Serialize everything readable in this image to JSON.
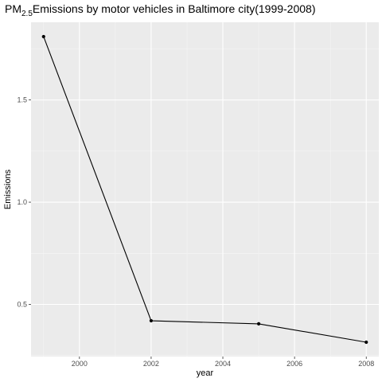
{
  "chart_data": {
    "type": "line",
    "title": {
      "prefix": "PM",
      "subscript": "2.5",
      "rest": "Emissions by motor vehicles in Baltimore city(1999-2008)"
    },
    "xlabel": "year",
    "ylabel": "Emissions",
    "x": [
      1999,
      2002,
      2005,
      2008
    ],
    "y": [
      1.81,
      0.42,
      0.405,
      0.315
    ],
    "xlim": [
      1998.65,
      2008.35
    ],
    "ylim": [
      0.245,
      1.88
    ],
    "x_ticks": [
      2000,
      2002,
      2004,
      2006,
      2008
    ],
    "x_tick_labels": [
      "2000",
      "2002",
      "2004",
      "2006",
      "2008"
    ],
    "y_ticks": [
      0.5,
      1.0,
      1.5
    ],
    "y_tick_labels": [
      "0.5",
      "1.0",
      "1.5"
    ],
    "grid": true,
    "legend": "none",
    "colors": {
      "panel": "#ebebeb",
      "grid_major": "#ffffff",
      "grid_minor": "#f5f5f5",
      "line": "#000000",
      "point": "#000000",
      "tick_text": "#4d4d4d"
    }
  }
}
